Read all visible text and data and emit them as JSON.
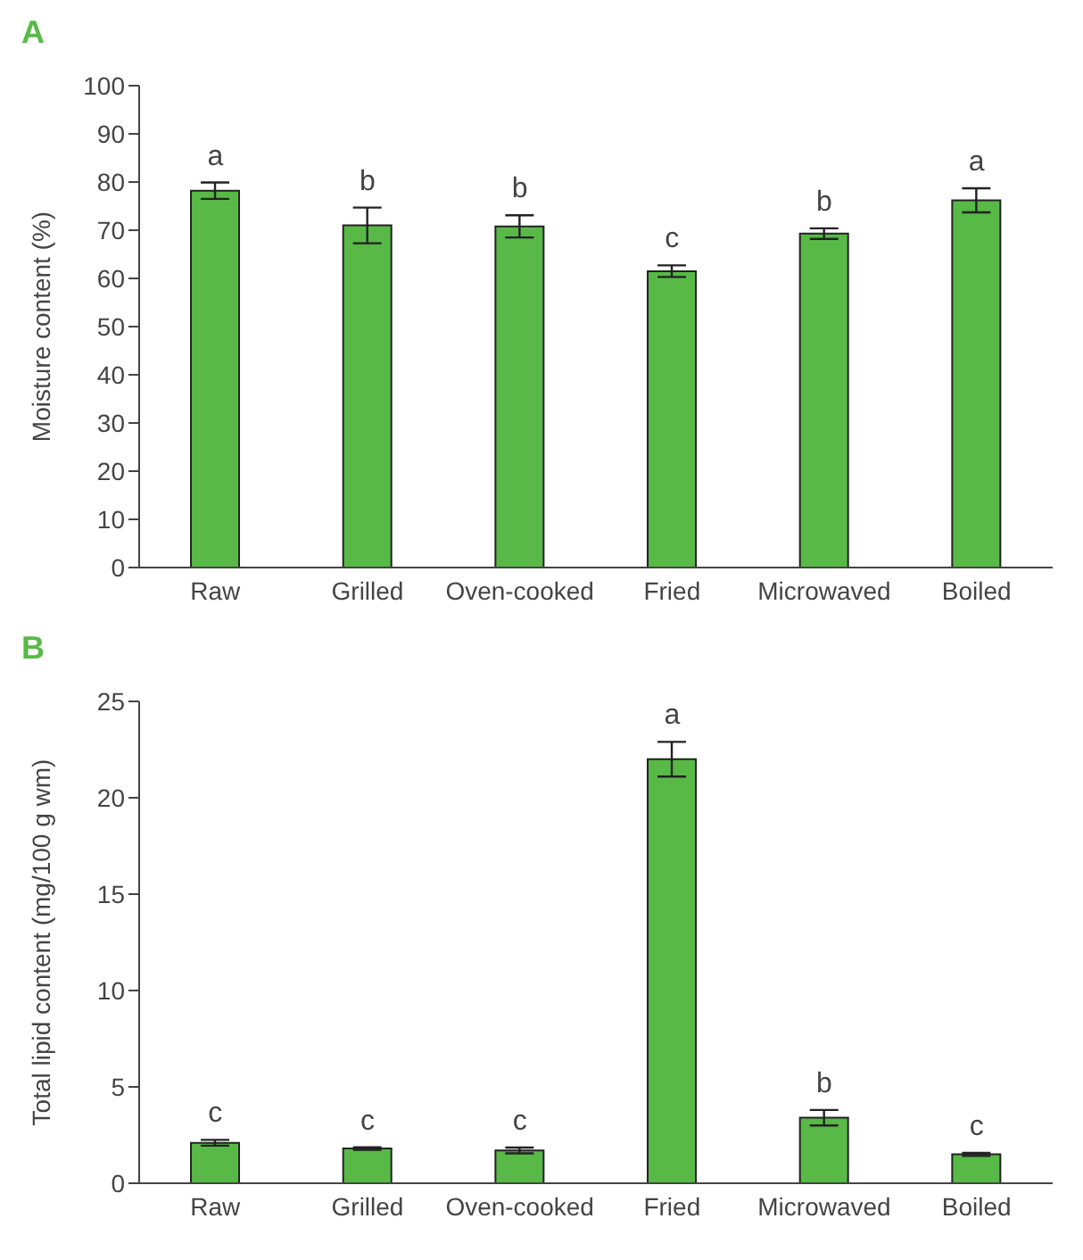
{
  "chart_data": [
    {
      "type": "bar",
      "title": "A",
      "ylabel": "Moisture content (%)",
      "categories": [
        "Raw",
        "Grilled",
        "Oven-cooked",
        "Fried",
        "Microwaved",
        "Boiled"
      ],
      "color": "#58b947",
      "values": [
        78.2,
        71.0,
        70.8,
        61.5,
        69.3,
        76.2
      ],
      "errors": [
        1.7,
        3.7,
        2.3,
        1.2,
        1.1,
        2.5
      ],
      "ylim": [
        0,
        100
      ],
      "yticks": [
        0,
        10,
        20,
        30,
        40,
        50,
        60,
        70,
        80,
        90,
        100
      ],
      "grid": false,
      "annotations": [
        "a",
        "b",
        "b",
        "c",
        "b",
        "a"
      ]
    },
    {
      "type": "bar",
      "title": "B",
      "ylabel": "Total lipid content (mg/100 g wm)",
      "categories": [
        "Raw",
        "Grilled",
        "Oven-cooked",
        "Fried",
        "Microwaved",
        "Boiled"
      ],
      "color": "#58b947",
      "values": [
        2.1,
        1.8,
        1.7,
        22.0,
        3.4,
        1.5
      ],
      "errors": [
        0.15,
        0.07,
        0.15,
        0.9,
        0.4,
        0.08
      ],
      "ylim": [
        0,
        25
      ],
      "yticks": [
        0,
        5,
        10,
        15,
        20,
        25
      ],
      "grid": false,
      "annotations": [
        "c",
        "c",
        "c",
        "a",
        "b",
        "c"
      ]
    }
  ]
}
